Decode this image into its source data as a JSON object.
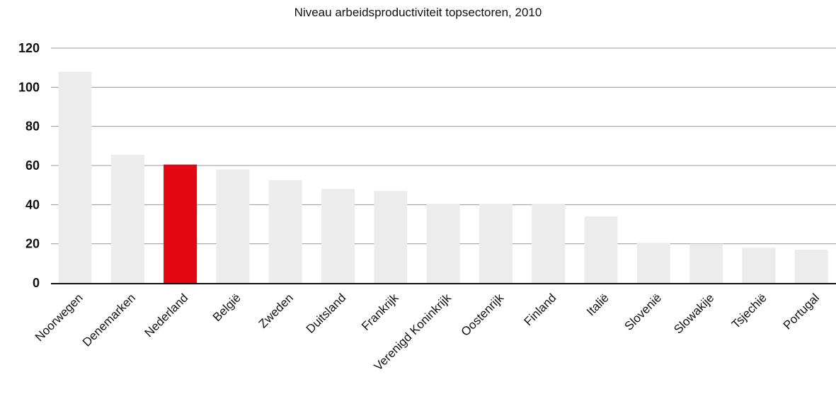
{
  "chart_data": {
    "type": "bar",
    "title": "Niveau arbeidsproductiviteit topsectoren, 2010",
    "xlabel": "",
    "ylabel": "",
    "categories": [
      "Noorwegen",
      "Denemarken",
      "Nederland",
      "België",
      "Zweden",
      "Duitsland",
      "Frankrijk",
      "Verenigd Koninkrijk",
      "Oostenrijk",
      "Finland",
      "Italië",
      "Slovenië",
      "Slowakije",
      "Tsjechië",
      "Portugal"
    ],
    "values": [
      108,
      65.5,
      60.5,
      58,
      52.5,
      48,
      47,
      40.5,
      40.5,
      40.5,
      34,
      20.5,
      20,
      18,
      17
    ],
    "highlight_index": 2,
    "yticks": [
      0,
      20,
      40,
      60,
      80,
      100,
      120
    ],
    "ylim": [
      0,
      120
    ],
    "grid": true,
    "legend": "none",
    "colors": {
      "bar": "#ececec",
      "highlight": "#e30613",
      "grid": "#9a9a9a",
      "axis": "#111111"
    }
  }
}
